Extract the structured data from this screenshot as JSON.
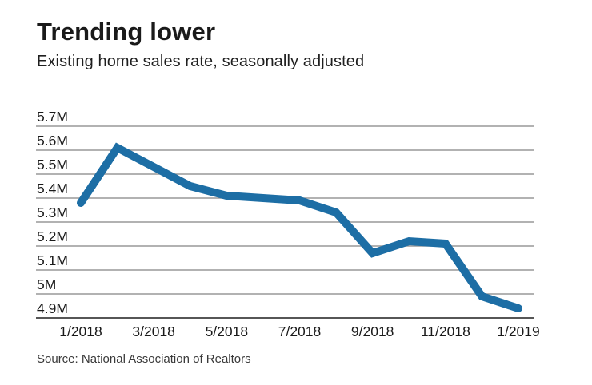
{
  "header": {
    "title": "Trending lower",
    "subtitle": "Existing home sales rate, seasonally adjusted"
  },
  "footer": {
    "source": "Source: National Association of Realtors"
  },
  "chart_data": {
    "type": "line",
    "title": "Trending lower",
    "subtitle": "Existing home sales rate, seasonally adjusted",
    "x": [
      "1/2018",
      "2/2018",
      "3/2018",
      "4/2018",
      "5/2018",
      "6/2018",
      "7/2018",
      "8/2018",
      "9/2018",
      "10/2018",
      "11/2018",
      "12/2018",
      "1/2019"
    ],
    "values": [
      5.38,
      5.61,
      5.53,
      5.45,
      5.41,
      5.4,
      5.39,
      5.34,
      5.17,
      5.22,
      5.21,
      4.99,
      4.94
    ],
    "series_name": "Existing home sales rate (seasonally adjusted annual rate)",
    "x_tick_indices": [
      0,
      2,
      4,
      6,
      8,
      10,
      12
    ],
    "x_tick_labels": [
      "1/2018",
      "3/2018",
      "5/2018",
      "7/2018",
      "9/2018",
      "11/2018",
      "1/2019"
    ],
    "y_tick_labels": [
      "5.7M",
      "5.6M",
      "5.5M",
      "5.4M",
      "5.3M",
      "5.2M",
      "5.1M",
      "5M",
      "4.9M"
    ],
    "y_tick_values": [
      5.7,
      5.6,
      5.5,
      5.4,
      5.3,
      5.2,
      5.1,
      5.0,
      4.9
    ],
    "ylim": [
      4.9,
      5.7
    ],
    "unit": "M",
    "grid": true,
    "legend_position": "none",
    "line_color": "#1d6ea5",
    "grid_color": "#999999",
    "axis_color": "#565656",
    "text_color": "#1a1a1a",
    "source": "Source: National Association of Realtors"
  }
}
